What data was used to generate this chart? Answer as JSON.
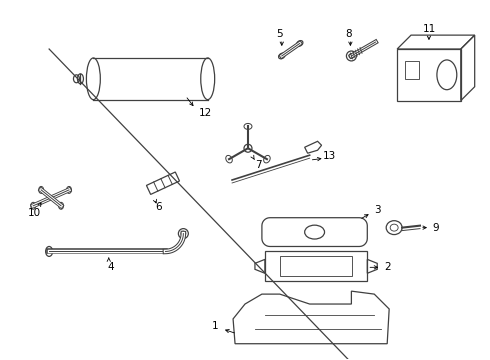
{
  "background_color": "#ffffff",
  "line_color": "#404040",
  "fig_width": 4.9,
  "fig_height": 3.6,
  "dpi": 100
}
